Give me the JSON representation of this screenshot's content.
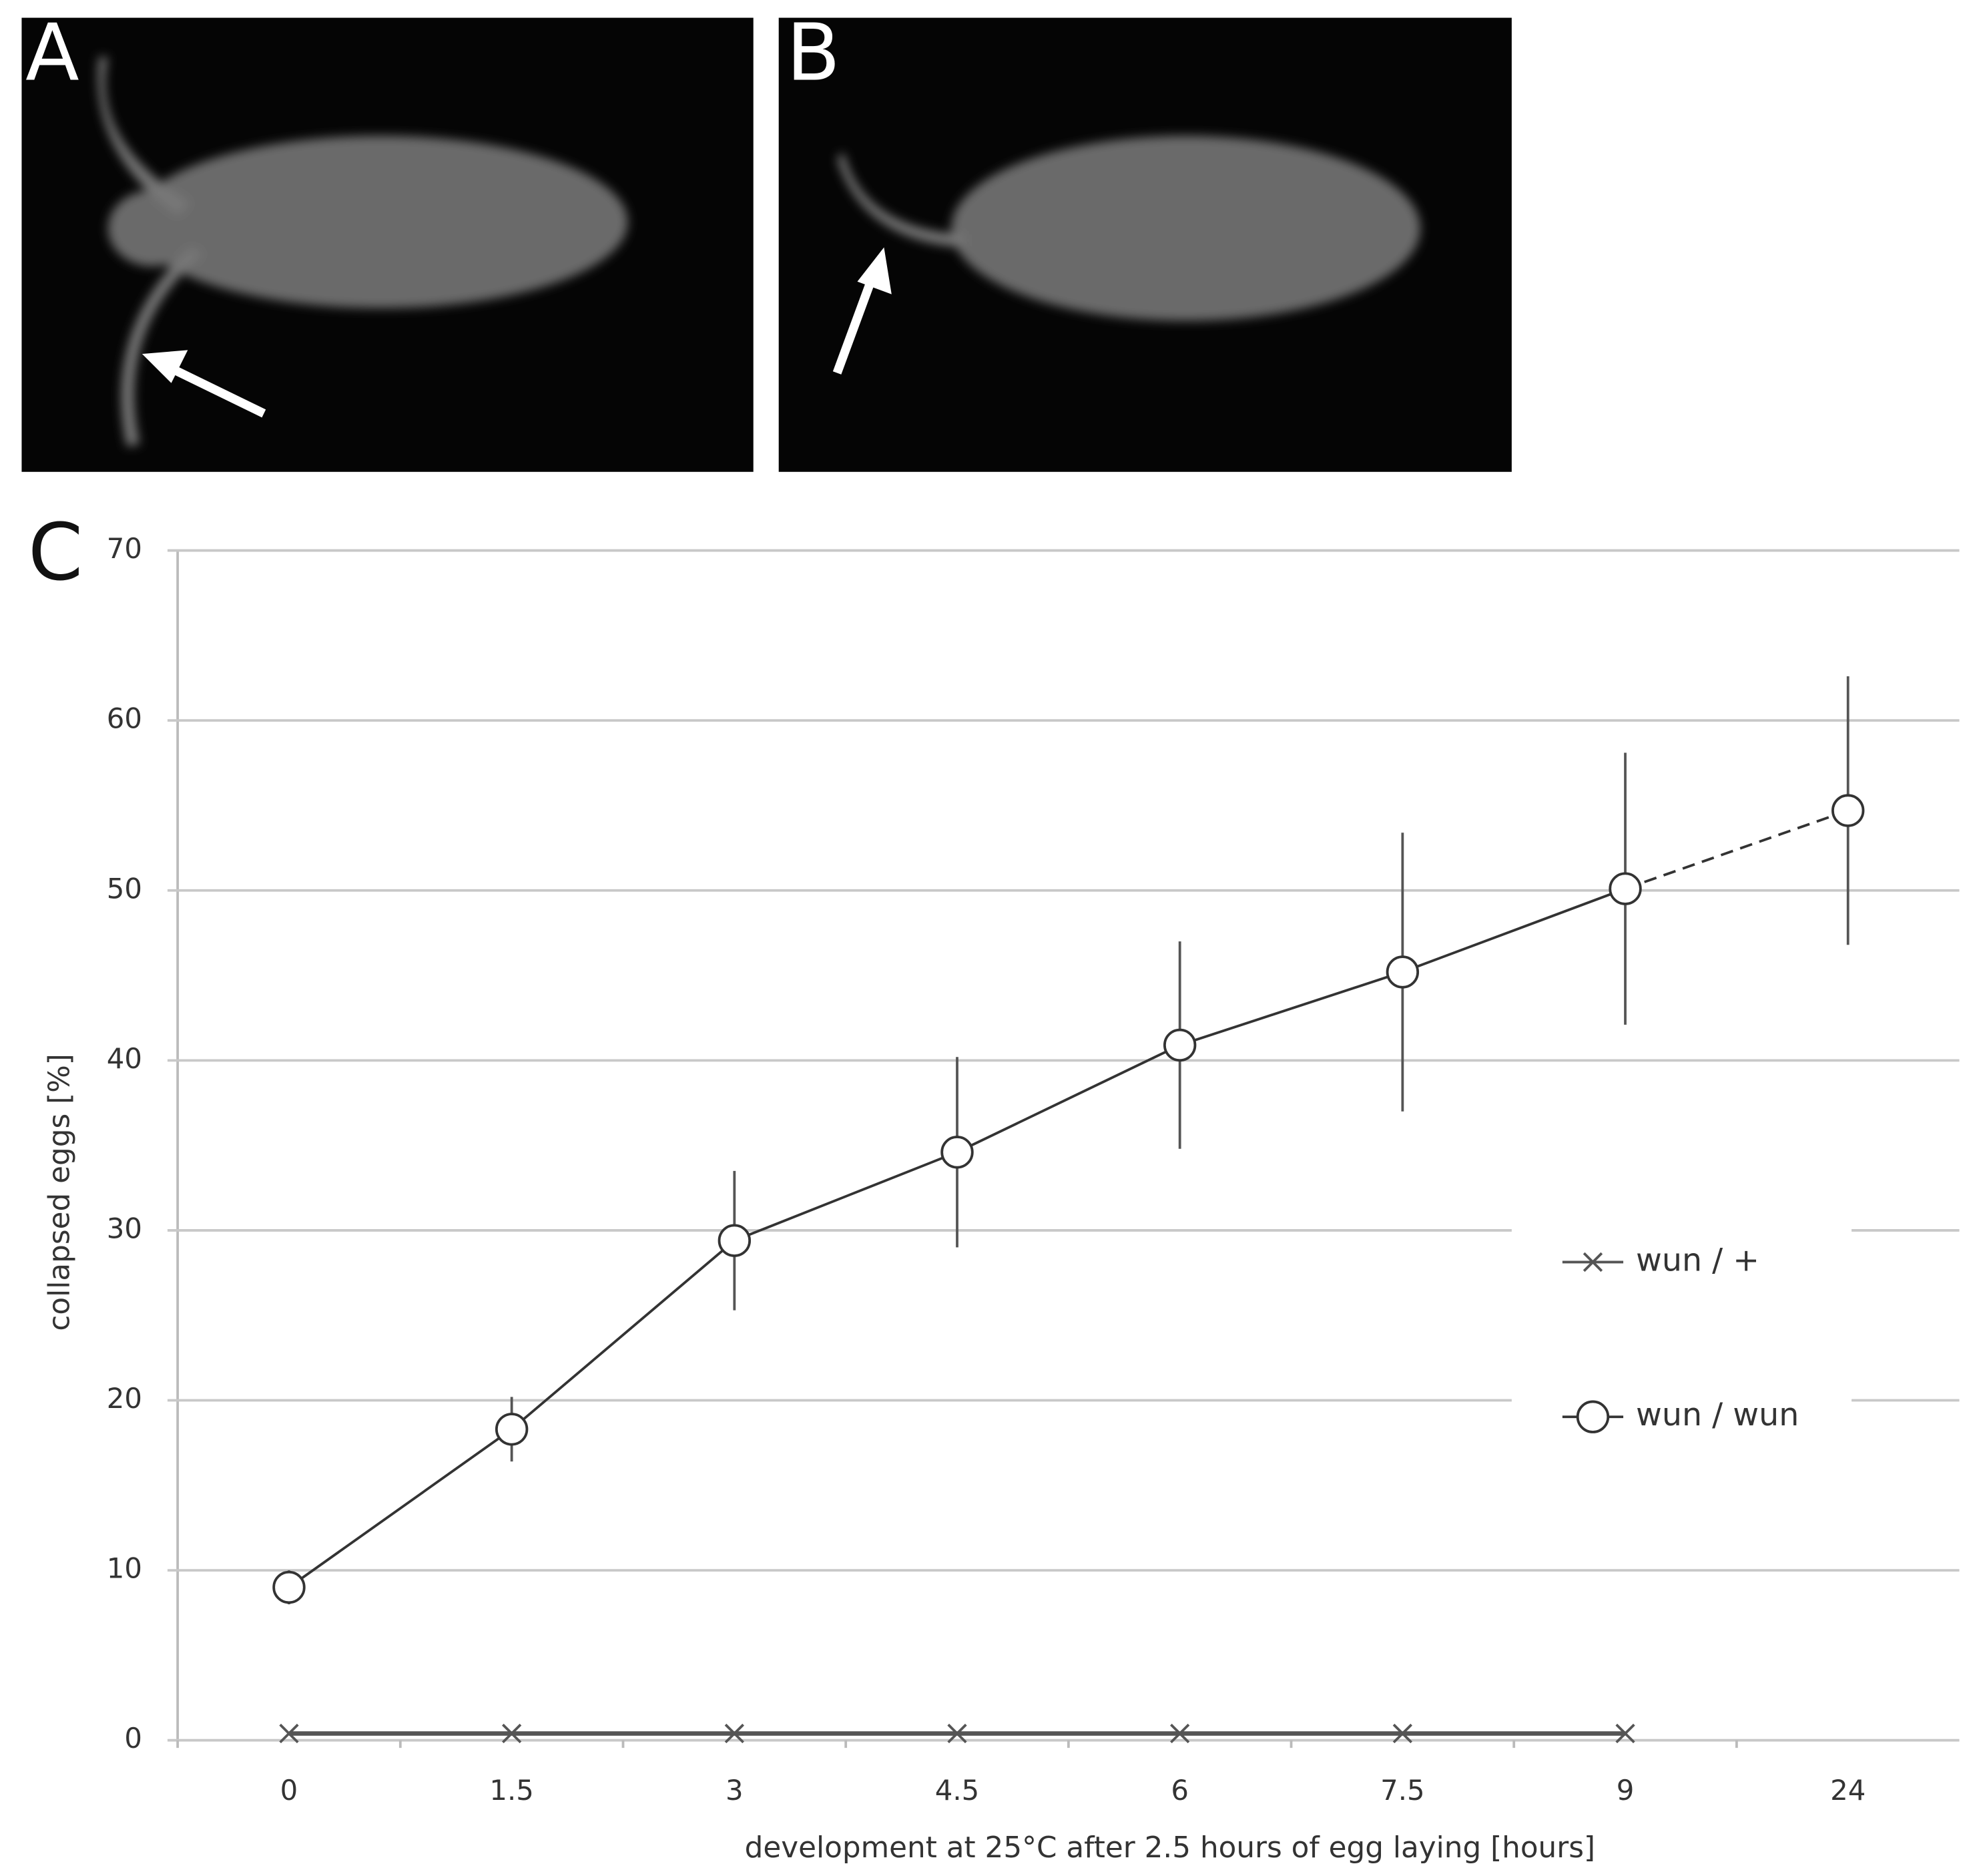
{
  "panel_labels": [
    "A",
    "B",
    "C"
  ],
  "chart_data": {
    "type": "line",
    "xlabel": "development at 25°C after 2.5 hours of egg laying [hours]",
    "ylabel": "collapsed eggs [%]",
    "categories": [
      "0",
      "1.5",
      "3",
      "4.5",
      "6",
      "7.5",
      "9",
      "24"
    ],
    "series": [
      {
        "name": "wun / +",
        "color": "#555555",
        "marker": "x",
        "values": [
          0.4,
          0.4,
          0.4,
          0.4,
          0.4,
          0.4,
          0.4,
          null
        ]
      },
      {
        "name": "wun / wun",
        "color": "#333333",
        "marker": "o",
        "values": [
          9,
          18.3,
          29.4,
          34.6,
          40.9,
          45.2,
          50.1,
          54.7
        ],
        "errors": [
          1,
          1.9,
          4.1,
          5.6,
          6.1,
          8.2,
          8,
          7.9
        ]
      }
    ],
    "ylim": [
      0,
      70
    ],
    "yticks": [
      0,
      10,
      20,
      30,
      40,
      50,
      60,
      70
    ],
    "grid": true,
    "legend": "right"
  }
}
